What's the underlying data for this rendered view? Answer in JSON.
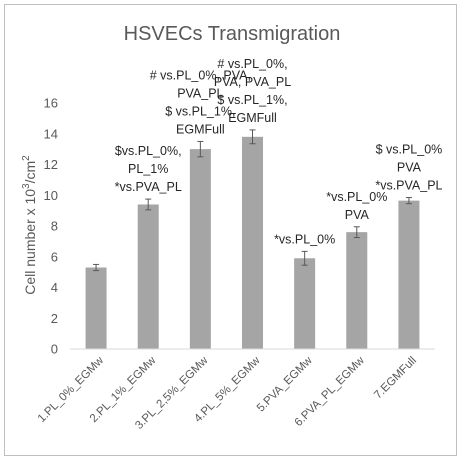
{
  "chart_data": {
    "type": "bar",
    "title": "HSVECs Transmigration",
    "ylabel": "Cell number x 10",
    "ylabel_sup": "3",
    "ylabel_tail": "/cm",
    "ylabel_sup2": "2",
    "xlabel": "",
    "ylim": [
      0,
      16
    ],
    "yticks": [
      "0",
      "2",
      "4",
      "6",
      "8",
      "10",
      "12",
      "14",
      "16"
    ],
    "grid": false,
    "bar_color": "#a5a5a5",
    "categories": [
      "1.PL_0%_EGMw",
      "2.PL_1%_EGMw",
      "3.PL_2,5%_EGMw",
      "4.PL_5%_EGMw",
      "5.PVA_EGMw",
      "6.PVA_PL_EGMw",
      "7.EGMFull"
    ],
    "values": [
      5.3,
      9.4,
      13.0,
      13.8,
      5.9,
      7.6,
      9.65
    ],
    "errors": [
      0.2,
      0.35,
      0.5,
      0.45,
      0.45,
      0.35,
      0.2
    ],
    "annotations": [
      [],
      [
        "$vs.PL_0%,",
        "PL_1%",
        "*vs.PVA_PL"
      ],
      [
        "# vs.PL_0%, PVA,",
        "PVA_PL",
        "$ vs.PL_1%,",
        "EGMFull"
      ],
      [
        "# vs.PL_0%,",
        "PVA, PVA_PL",
        "$ vs.PL_1%,",
        "EGMFull"
      ],
      [
        "*vs.PL_0%"
      ],
      [
        "*vs.PL_0%",
        "PVA"
      ],
      [
        "$ vs.PL_0%",
        "PVA",
        "*vs.PVA_PL"
      ]
    ]
  }
}
